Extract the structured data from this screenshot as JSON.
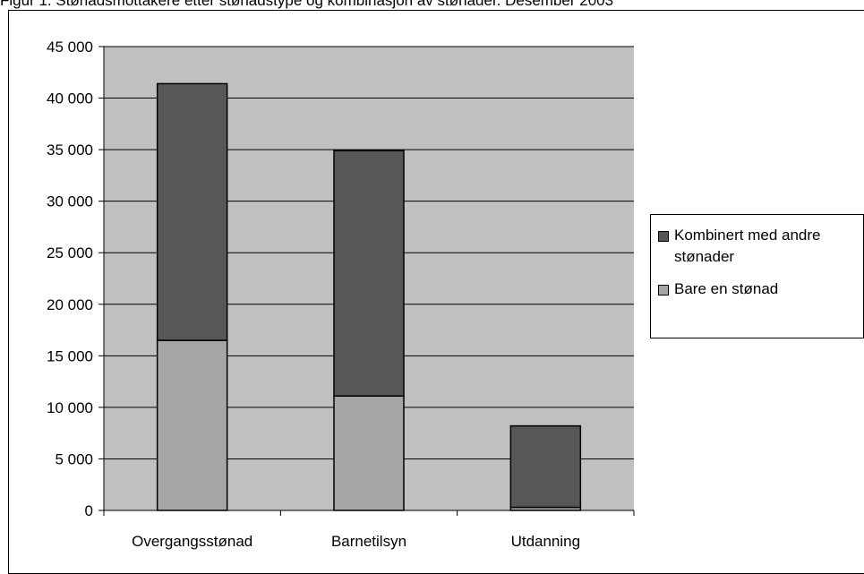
{
  "caption": "Figur 1. Stønadsmottakere etter stønadstype og kombinasjon av stønader. Desember 2003",
  "chart_data": {
    "type": "bar",
    "stacked": true,
    "categories": [
      "Overgangsstønad",
      "Barnetilsyn",
      "Utdanning"
    ],
    "series": [
      {
        "name": "Bare en stønad",
        "values": [
          16500,
          11100,
          300
        ],
        "color": "#a6a6a6"
      },
      {
        "name": "Kombinert med andre stønader",
        "values": [
          24900,
          23800,
          7900
        ],
        "color": "#575757"
      }
    ],
    "ylim": [
      0,
      45000
    ],
    "yticks": [
      0,
      5000,
      10000,
      15000,
      20000,
      25000,
      30000,
      35000,
      40000,
      45000
    ],
    "ytick_labels": [
      "0",
      "5 000",
      "10 000",
      "15 000",
      "20 000",
      "25 000",
      "30 000",
      "35 000",
      "40 000",
      "45 000"
    ],
    "title": "",
    "xlabel": "",
    "ylabel": "",
    "grid": true,
    "plot_background": "#c0c0c0",
    "legend_position": "right",
    "legend": [
      {
        "label": "Kombinert med andre stønader",
        "line1": "Kombinert med andre",
        "line2": "stønader",
        "color": "#575757"
      },
      {
        "label": "Bare en stønad",
        "line1": "Bare en stønad",
        "line2": "",
        "color": "#a6a6a6"
      }
    ]
  }
}
